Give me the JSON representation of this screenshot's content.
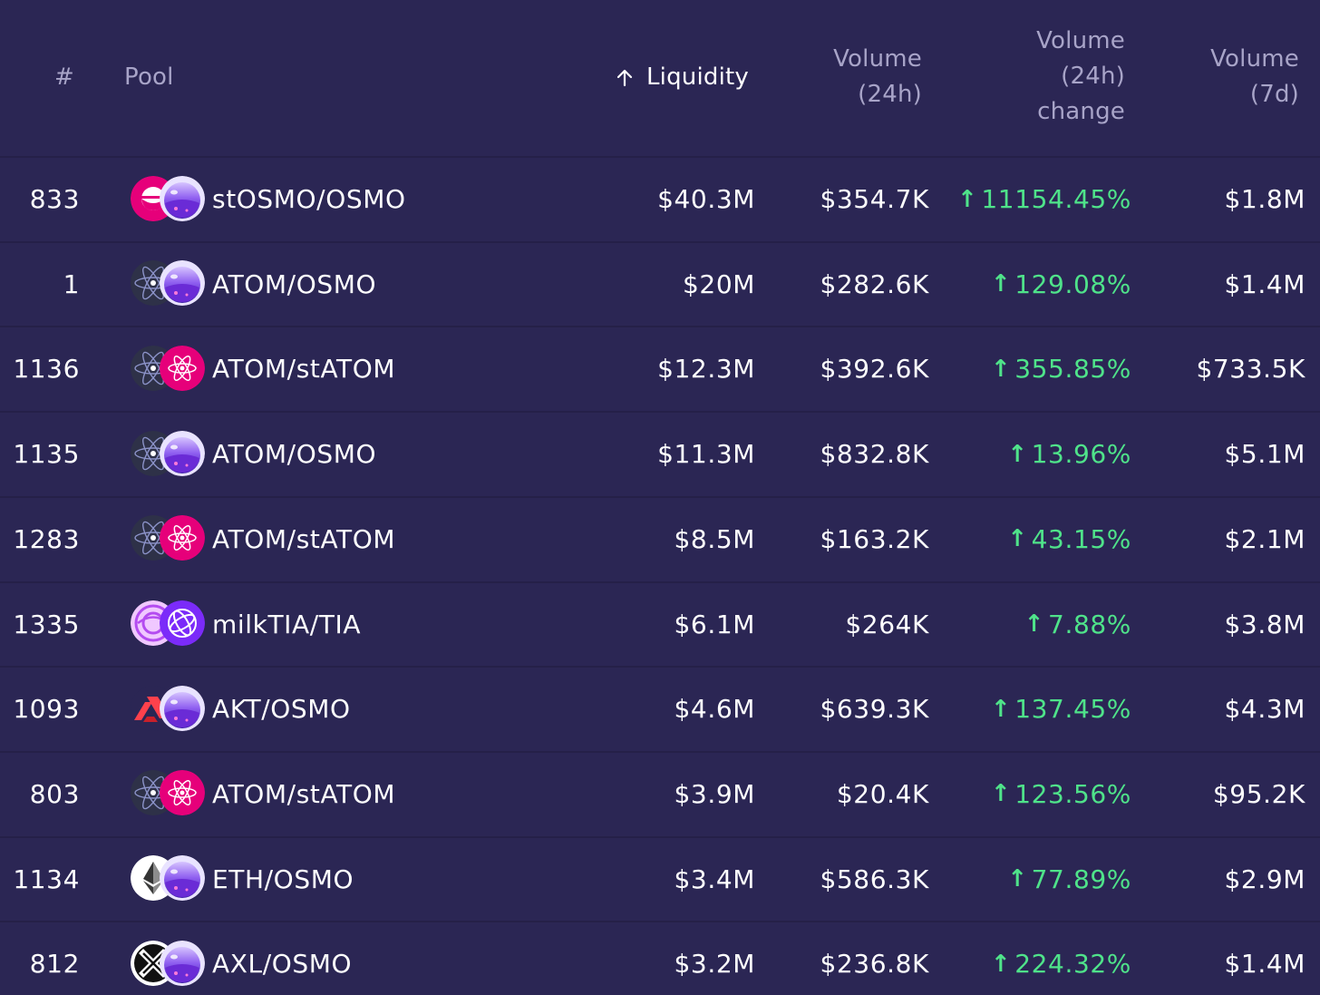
{
  "header": {
    "num": "#",
    "pool": "Pool",
    "liquidity": "Liquidity",
    "volume_24h_line1": "Volume",
    "volume_24h_line2": "(24h)",
    "volume_change_line1": "Volume",
    "volume_change_line2": "(24h)",
    "volume_change_line3": "change",
    "volume_7d_line1": "Volume",
    "volume_7d_line2": "(7d)",
    "sort_icon": "arrow-up-icon"
  },
  "colors": {
    "background": "#2b2654",
    "header_text": "#a8a4c8",
    "positive": "#4fe38a",
    "row_divider": "#252048"
  },
  "rows": [
    {
      "id": "833",
      "pool": "stOSMO/OSMO",
      "token_a_icon": "stosmo-icon",
      "token_b_icon": "osmo-icon",
      "liquidity": "$40.3M",
      "volume_24h": "$354.7K",
      "change": "11154.45%",
      "volume_7d": "$1.8M"
    },
    {
      "id": "1",
      "pool": "ATOM/OSMO",
      "token_a_icon": "atom-icon",
      "token_b_icon": "osmo-icon",
      "liquidity": "$20M",
      "volume_24h": "$282.6K",
      "change": "129.08%",
      "volume_7d": "$1.4M"
    },
    {
      "id": "1136",
      "pool": "ATOM/stATOM",
      "token_a_icon": "atom-icon",
      "token_b_icon": "statom-icon",
      "liquidity": "$12.3M",
      "volume_24h": "$392.6K",
      "change": "355.85%",
      "volume_7d": "$733.5K"
    },
    {
      "id": "1135",
      "pool": "ATOM/OSMO",
      "token_a_icon": "atom-icon",
      "token_b_icon": "osmo-icon",
      "liquidity": "$11.3M",
      "volume_24h": "$832.8K",
      "change": "13.96%",
      "volume_7d": "$5.1M"
    },
    {
      "id": "1283",
      "pool": "ATOM/stATOM",
      "token_a_icon": "atom-icon",
      "token_b_icon": "statom-icon",
      "liquidity": "$8.5M",
      "volume_24h": "$163.2K",
      "change": "43.15%",
      "volume_7d": "$2.1M"
    },
    {
      "id": "1335",
      "pool": "milkTIA/TIA",
      "token_a_icon": "milktia-icon",
      "token_b_icon": "tia-icon",
      "liquidity": "$6.1M",
      "volume_24h": "$264K",
      "change": "7.88%",
      "volume_7d": "$3.8M"
    },
    {
      "id": "1093",
      "pool": "AKT/OSMO",
      "token_a_icon": "akt-icon",
      "token_b_icon": "osmo-icon",
      "liquidity": "$4.6M",
      "volume_24h": "$639.3K",
      "change": "137.45%",
      "volume_7d": "$4.3M"
    },
    {
      "id": "803",
      "pool": "ATOM/stATOM",
      "token_a_icon": "atom-icon",
      "token_b_icon": "statom-icon",
      "liquidity": "$3.9M",
      "volume_24h": "$20.4K",
      "change": "123.56%",
      "volume_7d": "$95.2K"
    },
    {
      "id": "1134",
      "pool": "ETH/OSMO",
      "token_a_icon": "eth-icon",
      "token_b_icon": "osmo-icon",
      "liquidity": "$3.4M",
      "volume_24h": "$586.3K",
      "change": "77.89%",
      "volume_7d": "$2.9M"
    },
    {
      "id": "812",
      "pool": "AXL/OSMO",
      "token_a_icon": "axl-icon",
      "token_b_icon": "osmo-icon",
      "liquidity": "$3.2M",
      "volume_24h": "$236.8K",
      "change": "224.32%",
      "volume_7d": "$1.4M"
    }
  ]
}
